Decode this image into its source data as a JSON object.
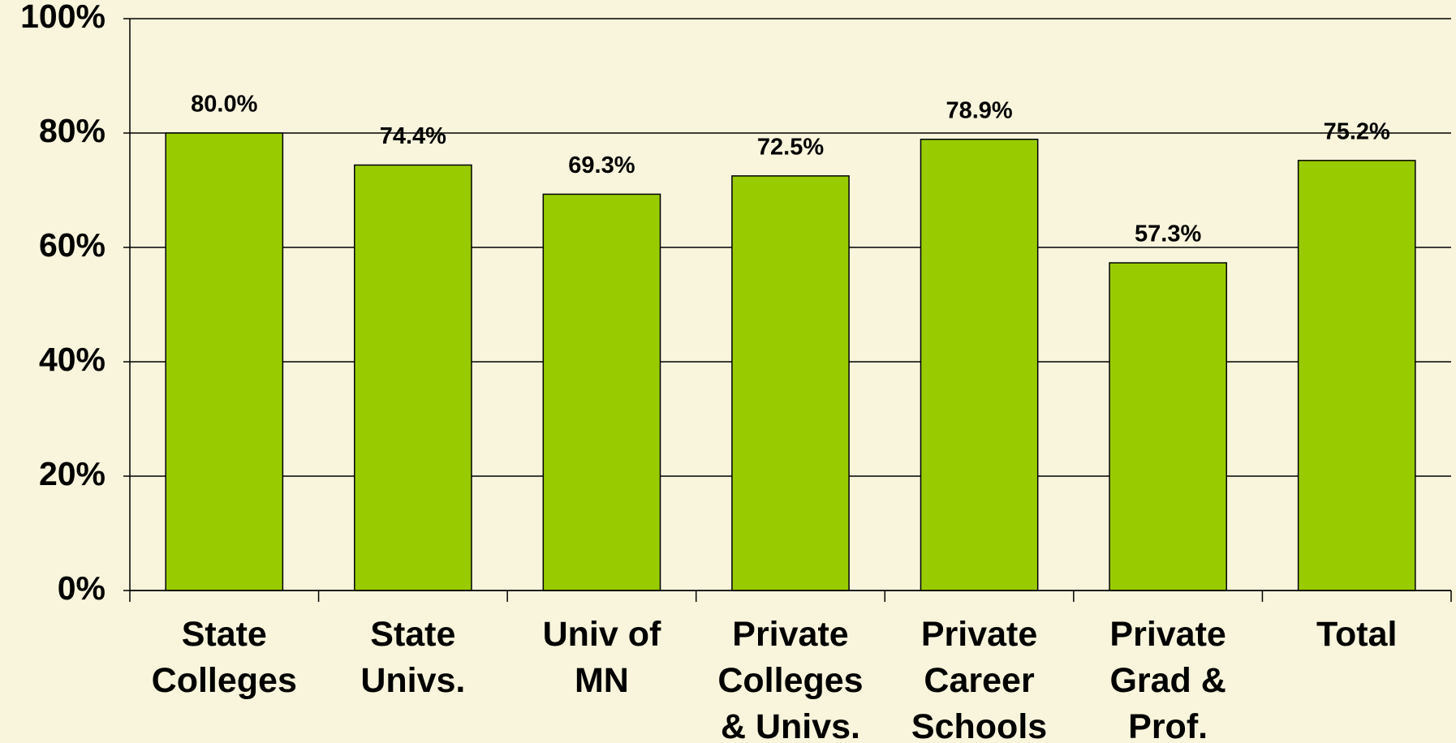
{
  "chart_data": {
    "type": "bar",
    "categories": [
      "State\nColleges",
      "State\nUnivs.",
      "Univ of\nMN",
      "Private\nColleges\n& Univs.",
      "Private\nCareer\nSchools",
      "Private\nGrad &\nProf.",
      "Total"
    ],
    "values": [
      80.0,
      74.4,
      69.3,
      72.5,
      78.9,
      57.3,
      75.2
    ],
    "value_labels": [
      "80.0%",
      "74.4%",
      "69.3%",
      "72.5%",
      "78.9%",
      "57.3%",
      "75.2%"
    ],
    "color": "#99cc00",
    "ylim": [
      0,
      100
    ],
    "yticks": [
      {
        "value": 0,
        "label": "0%"
      },
      {
        "value": 20,
        "label": "20%"
      },
      {
        "value": 40,
        "label": "40%"
      },
      {
        "value": 60,
        "label": "60%"
      },
      {
        "value": 80,
        "label": "80%"
      },
      {
        "value": 100,
        "label": "100%"
      }
    ],
    "grid": true
  }
}
